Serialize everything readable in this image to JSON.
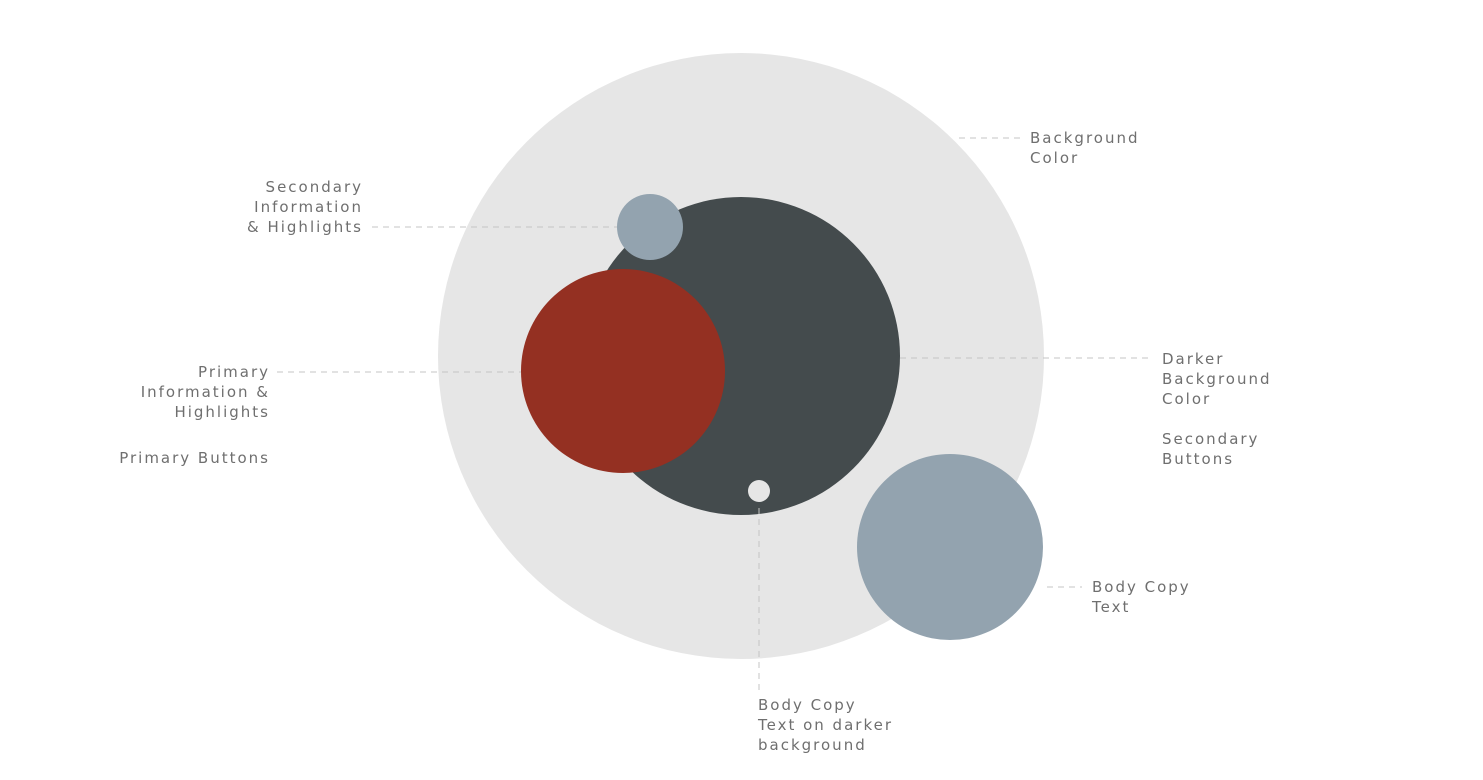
{
  "colors": {
    "page_background": "#ffffff",
    "background_color": "#e6e6e6",
    "darker_background_color": "#444b4d",
    "primary": "#943022",
    "secondary": "#93a3af",
    "body_copy_on_dark": "#e6e6e6",
    "leader_line": "#c4c4c4",
    "label_text": "#6f6f6f"
  },
  "labels": {
    "secondary_info": [
      "Secondary",
      "Information",
      "& Highlights"
    ],
    "primary_info": [
      "Primary",
      "Information &",
      "Highlights"
    ],
    "primary_buttons": "Primary Buttons",
    "background": [
      "Background",
      "Color"
    ],
    "darker_background": [
      "Darker",
      "Background",
      "Color"
    ],
    "secondary_buttons": [
      "Secondary",
      "Buttons"
    ],
    "body_copy": [
      "Body Copy",
      "Text"
    ],
    "body_copy_dark": [
      "Body Copy",
      "Text on darker",
      "background"
    ]
  }
}
